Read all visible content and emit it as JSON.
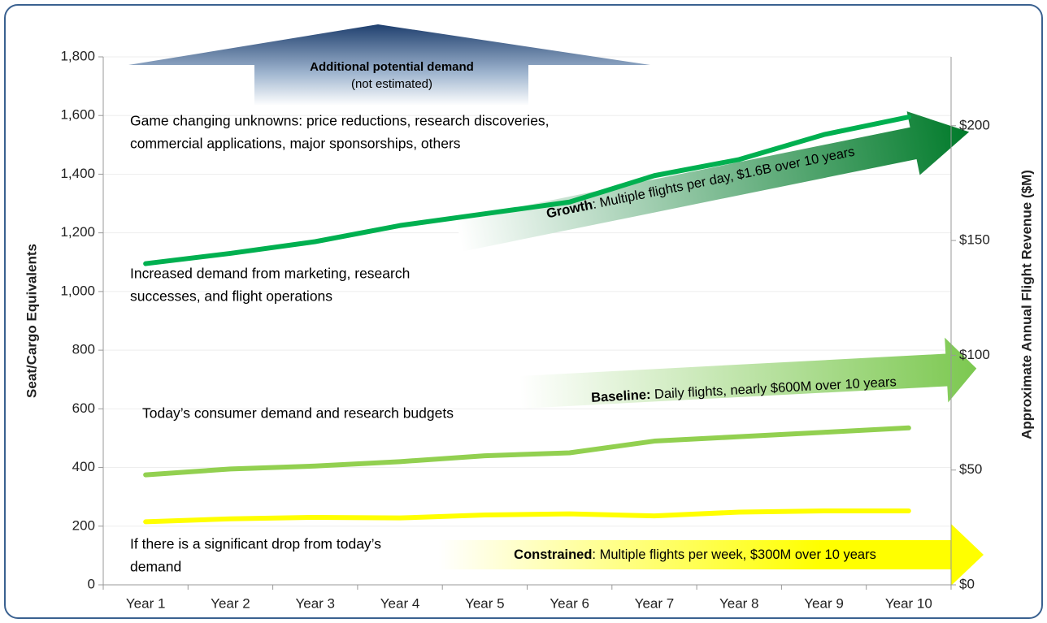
{
  "chart_data": {
    "type": "line",
    "categories": [
      "Year 1",
      "Year 2",
      "Year 3",
      "Year 4",
      "Year 5",
      "Year 6",
      "Year 7",
      "Year 8",
      "Year 9",
      "Year 10"
    ],
    "series": [
      {
        "color": "#00b050",
        "values": [
          1095,
          1130,
          1170,
          1225,
          1265,
          1305,
          1395,
          1450,
          1535,
          1595
        ]
      },
      {
        "color": "#92d050",
        "values": [
          375,
          395,
          405,
          420,
          440,
          450,
          490,
          505,
          520,
          535
        ]
      },
      {
        "color": "#ffff00",
        "values": [
          215,
          225,
          230,
          228,
          238,
          242,
          235,
          248,
          252,
          252
        ]
      }
    ],
    "ylim": [
      0,
      1800
    ],
    "yticks": [
      0,
      200,
      400,
      600,
      800,
      {
        "value": 1000,
        "label": "1,000"
      },
      {
        "value": 1200,
        "label": "1,200"
      },
      {
        "value": 1400,
        "label": "1,400"
      },
      {
        "value": 1600,
        "label": "1,600"
      },
      {
        "value": 1800,
        "label": "1,800"
      }
    ],
    "y2lim": [
      0,
      230
    ],
    "y2ticks": [
      {
        "value": 0,
        "label": "$0"
      },
      {
        "value": 50,
        "label": "$50"
      },
      {
        "value": 100,
        "label": "$100"
      },
      {
        "value": 150,
        "label": "$150"
      },
      {
        "value": 200,
        "label": "$200"
      }
    ],
    "ylabel": "Seat/Cargo Equivalents",
    "y2label": "Approximate Annual Flight Revenue ($M)",
    "grid": true,
    "top_note": {
      "title": "Additional potential demand",
      "subtitle": "(not estimated)"
    },
    "annotations": [
      {
        "lines": [
          "Game changing unknowns: price reductions, research discoveries,",
          "commercial applications, major sponsorships, others"
        ]
      },
      {
        "lines": [
          "Increased demand from marketing, research",
          "successes, and flight operations"
        ]
      },
      {
        "lines": [
          "Today’s consumer demand and research budgets"
        ]
      },
      {
        "lines": [
          "If there is a significant drop from today’s",
          "demand"
        ]
      }
    ],
    "arrow_labels": [
      {
        "bold": "Growth",
        "text": ": Multiple flights per day, $1.6B over 10 years"
      },
      {
        "bold": "Baseline:",
        "text": " Daily flights, nearly $600M over 10 years"
      },
      {
        "bold": "Constrained",
        "text": ": Multiple flights per week, $300M over 10 years"
      }
    ]
  }
}
